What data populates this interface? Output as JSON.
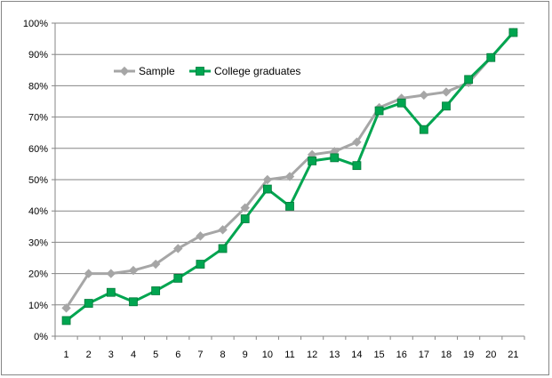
{
  "chart_data": {
    "type": "line",
    "title": "",
    "xlabel": "",
    "ylabel": "",
    "categories": [
      "1",
      "2",
      "3",
      "4",
      "5",
      "6",
      "7",
      "8",
      "9",
      "10",
      "11",
      "12",
      "13",
      "14",
      "15",
      "16",
      "17",
      "18",
      "19",
      "20",
      "21"
    ],
    "y_tick_labels": [
      "0%",
      "10%",
      "20%",
      "30%",
      "40%",
      "50%",
      "60%",
      "70%",
      "80%",
      "90%",
      "100%"
    ],
    "ylim": [
      0,
      100
    ],
    "y_unit": "%",
    "grid": "horizontal",
    "legend_position": "top-left",
    "series": [
      {
        "name": "Sample",
        "color": "#A6A6A6",
        "marker": "diamond",
        "values": [
          9,
          20,
          20,
          21,
          23,
          28,
          32,
          34,
          41,
          50,
          51,
          58,
          59,
          62,
          73,
          76,
          77,
          78,
          81,
          89,
          97
        ]
      },
      {
        "name": "College graduates",
        "color": "#00A550",
        "marker": "square",
        "values": [
          5,
          10.5,
          14,
          11,
          14.5,
          18.5,
          23,
          28,
          37.5,
          47,
          41.5,
          56,
          57,
          54.5,
          72,
          74.5,
          66,
          73.5,
          82,
          89,
          97
        ]
      }
    ]
  }
}
